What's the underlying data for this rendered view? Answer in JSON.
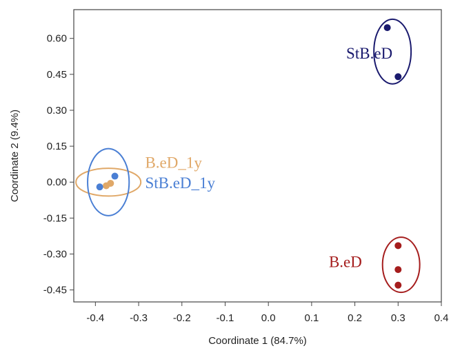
{
  "chart_data": {
    "type": "scatter",
    "xlabel": "Coordinate 1 (84.7%)",
    "ylabel": "Coordinate 2 (9.4%)",
    "xlim": [
      -0.45,
      0.4
    ],
    "ylim": [
      -0.5,
      0.72
    ],
    "x_ticks": [
      -0.4,
      -0.3,
      -0.2,
      -0.1,
      0.0,
      0.1,
      0.2,
      0.3,
      0.4
    ],
    "x_tick_labels": [
      "-0.4",
      "-0.3",
      "-0.2",
      "-0.1",
      "0.0",
      "0.1",
      "0.2",
      "0.3",
      "0.4"
    ],
    "y_ticks": [
      0.6,
      0.45,
      0.3,
      0.15,
      0.0,
      -0.15,
      -0.3,
      -0.45
    ],
    "y_tick_labels": [
      "0.60",
      "0.45",
      "0.30",
      "0.15",
      "0.00",
      "-0.15",
      "-0.30",
      "-0.45"
    ],
    "grid": false,
    "series": [
      {
        "name": "StB.eD",
        "color": "#1a1a6e",
        "points": [
          [
            0.275,
            0.645
          ],
          [
            0.3,
            0.44
          ]
        ]
      },
      {
        "name": "B.eD",
        "color": "#a51d1d",
        "points": [
          [
            0.3,
            -0.265
          ],
          [
            0.3,
            -0.365
          ],
          [
            0.3,
            -0.43
          ]
        ]
      },
      {
        "name": "B.eD_1y",
        "color": "#e0a868",
        "points": [
          [
            -0.375,
            -0.015
          ],
          [
            -0.365,
            -0.005
          ]
        ]
      },
      {
        "name": "StB.eD_1y",
        "color": "#4a7fd4",
        "points": [
          [
            -0.39,
            -0.02
          ],
          [
            -0.355,
            0.025
          ]
        ]
      }
    ],
    "ellipses": [
      {
        "group": "StB.eD",
        "color": "#1a1a6e",
        "cx": 0.287,
        "cy": 0.545,
        "rx": 0.043,
        "ry": 0.135
      },
      {
        "group": "B.eD",
        "color": "#a51d1d",
        "cx": 0.307,
        "cy": -0.345,
        "rx": 0.043,
        "ry": 0.115
      },
      {
        "group": "B.eD_1y",
        "color": "#e0a868",
        "cx": -0.37,
        "cy": 0.0,
        "rx": 0.075,
        "ry": 0.058
      },
      {
        "group": "StB.eD_1y",
        "color": "#4a7fd4",
        "cx": -0.37,
        "cy": 0.0,
        "rx": 0.048,
        "ry": 0.14
      }
    ],
    "annotations": [
      {
        "text": "StB.eD",
        "color": "#1a1a6e",
        "x": 0.18,
        "y": 0.515
      },
      {
        "text": "B.eD_1y",
        "color": "#e0a868",
        "x": -0.285,
        "y": 0.06
      },
      {
        "text": "StB.eD_1y",
        "color": "#4a7fd4",
        "x": -0.285,
        "y": -0.025
      },
      {
        "text": "B.eD",
        "color": "#a51d1d",
        "x": 0.14,
        "y": -0.355
      }
    ]
  }
}
